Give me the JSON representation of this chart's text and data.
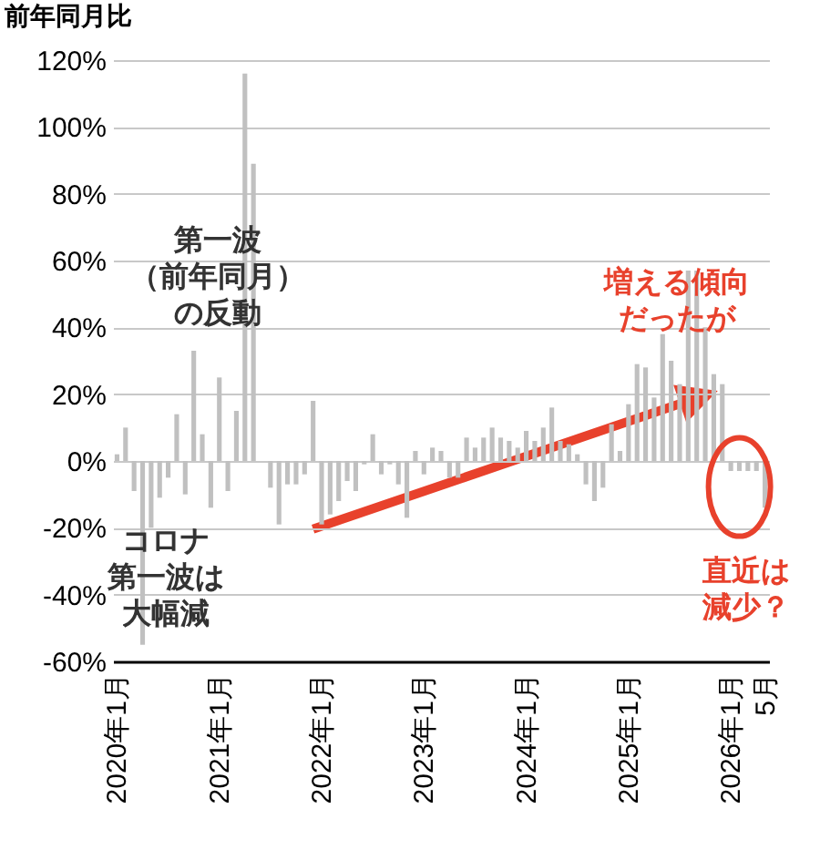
{
  "chart_data": {
    "type": "bar",
    "ylabel": "前年同月比",
    "categories": [
      "2020年1月",
      null,
      null,
      null,
      null,
      null,
      null,
      null,
      null,
      null,
      null,
      null,
      "2021年1月",
      null,
      null,
      null,
      null,
      null,
      null,
      null,
      null,
      null,
      null,
      null,
      "2022年1月",
      null,
      null,
      null,
      null,
      null,
      null,
      null,
      null,
      null,
      null,
      null,
      "2023年1月",
      null,
      null,
      null,
      null,
      null,
      null,
      null,
      null,
      null,
      null,
      null,
      "2024年1月",
      null,
      null,
      null,
      null,
      null,
      null,
      null,
      null,
      null,
      null,
      null,
      "2025年1月",
      null,
      null,
      null,
      null,
      null,
      null,
      null,
      null,
      null,
      null,
      null,
      "2026年1月",
      null,
      null,
      null,
      "5月"
    ],
    "values": [
      2,
      10,
      -9,
      -55,
      -20,
      -11,
      -5,
      14,
      -10,
      33,
      8,
      -14,
      25,
      -9,
      15,
      116,
      89,
      null,
      -8,
      -19,
      -7,
      -7,
      -4,
      18,
      -19,
      -16,
      -12,
      -6,
      -9,
      -1,
      8,
      -4,
      -1,
      -7,
      -17,
      3,
      -4,
      4,
      3,
      -5,
      -5,
      7,
      4,
      7,
      10,
      7,
      6,
      4,
      9,
      6,
      10,
      16,
      6,
      5,
      2,
      -7,
      -12,
      -8,
      11,
      3,
      17,
      29,
      28,
      19,
      38,
      30,
      23,
      57,
      57,
      40,
      26,
      23,
      -3,
      -3,
      -3,
      -3,
      -14
    ],
    "color": "#c0c0c0",
    "ylim": [
      -60,
      120
    ],
    "yticks": [
      {
        "value": -60,
        "label": "-60%"
      },
      {
        "value": -40,
        "label": "-40%"
      },
      {
        "value": -20,
        "label": "-20%"
      },
      {
        "value": 0,
        "label": "0%"
      },
      {
        "value": 20,
        "label": "20%"
      },
      {
        "value": 40,
        "label": "40%"
      },
      {
        "value": 60,
        "label": "60%"
      },
      {
        "value": 80,
        "label": "80%"
      },
      {
        "value": 100,
        "label": "100%"
      },
      {
        "value": 120,
        "label": "120%"
      }
    ],
    "grid": "y",
    "annotations": [
      "第一波（前年同月）の反動",
      "コロナ第一波は大幅減",
      "増える傾向だったが",
      "直近は減少？"
    ]
  }
}
